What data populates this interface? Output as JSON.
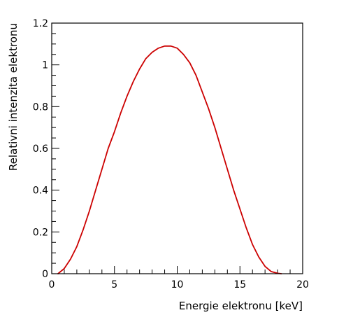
{
  "chart_data": {
    "type": "line",
    "title": "",
    "xlabel": "Energie elektronu [keV]",
    "ylabel": "Relativni intenzita elektronu",
    "xlim": [
      0,
      20
    ],
    "ylim": [
      0,
      1.2
    ],
    "x_ticks": [
      0,
      5,
      10,
      15,
      20
    ],
    "x_tick_labels": [
      "0",
      "5",
      "10",
      "15",
      "20"
    ],
    "y_ticks": [
      0,
      0.2,
      0.4,
      0.6,
      0.8,
      1,
      1.2
    ],
    "y_tick_labels": [
      "0",
      "0.2",
      "0.4",
      "0.6",
      "0.8",
      "1",
      "1.2"
    ],
    "grid": false,
    "legend": "none",
    "series": [
      {
        "color": "#cc0000",
        "x": [
          0.5,
          1,
          1.5,
          2,
          2.5,
          3,
          3.5,
          4,
          4.5,
          5,
          5.5,
          6,
          6.5,
          7,
          7.5,
          8,
          8.5,
          9,
          9.3,
          9.5,
          10,
          10.5,
          11,
          11.5,
          12,
          12.5,
          13,
          13.5,
          14,
          14.5,
          15,
          15.5,
          16,
          16.5,
          17,
          17.5,
          18,
          18.3
        ],
        "y": [
          0,
          0.025,
          0.07,
          0.13,
          0.21,
          0.3,
          0.4,
          0.5,
          0.6,
          0.68,
          0.77,
          0.85,
          0.92,
          0.98,
          1.03,
          1.06,
          1.08,
          1.09,
          1.09,
          1.09,
          1.08,
          1.05,
          1.01,
          0.95,
          0.87,
          0.79,
          0.7,
          0.6,
          0.5,
          0.4,
          0.31,
          0.22,
          0.14,
          0.08,
          0.035,
          0.01,
          0.002,
          0
        ]
      }
    ]
  }
}
